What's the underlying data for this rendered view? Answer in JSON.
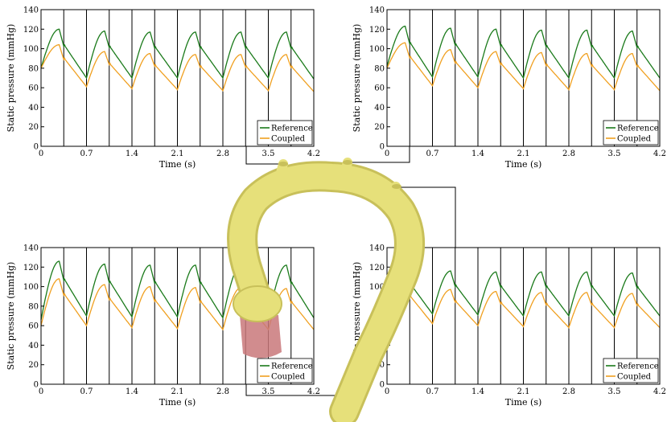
{
  "figure": {
    "colors": {
      "reference": "#1a7a1a",
      "coupled": "#f0a020",
      "aorta": "#e6e07a",
      "aorta_shade": "#c8c05a",
      "ventricle": "#c9787a",
      "frame": "#000000"
    }
  },
  "chart_data": [
    {
      "type": "line",
      "panel": "top-left",
      "xlabel": "Time (s)",
      "ylabel": "Static pressure (mmHg)",
      "xlim": [
        0,
        4.2
      ],
      "ylim": [
        0,
        140
      ],
      "xticks": [
        "0",
        "0.7",
        "1.4",
        "2.1",
        "2.8",
        "3.5",
        "4.2"
      ],
      "yticks": [
        "0",
        "20",
        "40",
        "60",
        "80",
        "100",
        "120",
        "140"
      ],
      "vlines": [
        0.35,
        0.7,
        1.05,
        1.4,
        1.75,
        2.1,
        2.45,
        2.8,
        3.15,
        3.5,
        3.85
      ],
      "legend": {
        "position": "bottom-right",
        "entries": [
          "Reference",
          "Coupled"
        ]
      },
      "series": [
        {
          "name": "Reference",
          "color": "reference",
          "start": 80,
          "peaks": [
            120,
            118,
            117,
            117,
            117,
            117
          ],
          "troughs": [
            70,
            70,
            70,
            70,
            70,
            69
          ]
        },
        {
          "name": "Coupled",
          "color": "coupled",
          "start": 80,
          "peaks": [
            104,
            97,
            95,
            94,
            94,
            94
          ],
          "troughs": [
            61,
            59,
            58,
            57,
            57,
            56
          ]
        }
      ]
    },
    {
      "type": "line",
      "panel": "top-right",
      "xlabel": "Time (s)",
      "ylabel": "Static pressure (mmHg)",
      "xlim": [
        0,
        4.2
      ],
      "ylim": [
        0,
        140
      ],
      "xticks": [
        "0",
        "0.7",
        "1.4",
        "2.1",
        "2.8",
        "3.5",
        "4.2"
      ],
      "yticks": [
        "0",
        "20",
        "40",
        "60",
        "80",
        "100",
        "120",
        "140"
      ],
      "vlines": [
        0.35,
        0.7,
        1.05,
        1.4,
        1.75,
        2.1,
        2.45,
        2.8,
        3.15,
        3.5,
        3.85
      ],
      "legend": {
        "position": "bottom-right",
        "entries": [
          "Reference",
          "Coupled"
        ]
      },
      "series": [
        {
          "name": "Reference",
          "color": "reference",
          "start": 82,
          "peaks": [
            123,
            121,
            120,
            119,
            119,
            118
          ],
          "troughs": [
            71,
            71,
            70,
            70,
            70,
            70
          ]
        },
        {
          "name": "Coupled",
          "color": "coupled",
          "start": 80,
          "peaks": [
            106,
            99,
            97,
            96,
            95,
            95
          ],
          "troughs": [
            62,
            60,
            59,
            58,
            58,
            57
          ]
        }
      ]
    },
    {
      "type": "line",
      "panel": "bottom-left",
      "xlabel": "Time (s)",
      "ylabel": "Static pressure (mmHg)",
      "xlim": [
        0,
        4.2
      ],
      "ylim": [
        0,
        140
      ],
      "xticks": [
        "0",
        "0.7",
        "1.4",
        "2.1",
        "2.8",
        "3.5",
        "4.2"
      ],
      "yticks": [
        "0",
        "20",
        "40",
        "60",
        "80",
        "100",
        "120",
        "140"
      ],
      "vlines": [
        0.35,
        0.7,
        1.05,
        1.4,
        1.75,
        2.1,
        2.45,
        2.8,
        3.15,
        3.5,
        3.85
      ],
      "legend": {
        "position": "bottom-right",
        "entries": [
          "Reference",
          "Coupled"
        ]
      },
      "series": [
        {
          "name": "Reference",
          "color": "reference",
          "start": 66,
          "peaks": [
            126,
            123,
            122,
            122,
            122,
            122
          ],
          "troughs": [
            70,
            69,
            69,
            68,
            68,
            68
          ]
        },
        {
          "name": "Coupled",
          "color": "coupled",
          "start": 60,
          "peaks": [
            108,
            102,
            100,
            99,
            99,
            98
          ],
          "troughs": [
            60,
            58,
            57,
            56,
            56,
            56
          ]
        }
      ]
    },
    {
      "type": "line",
      "panel": "bottom-right",
      "xlabel": "Time (s)",
      "ylabel": "Static pressure (mmHg)",
      "xlim": [
        0,
        4.2
      ],
      "ylim": [
        0,
        140
      ],
      "xticks": [
        "0",
        "0.7",
        "1.4",
        "2.1",
        "2.8",
        "3.5",
        "4.2"
      ],
      "yticks": [
        "0",
        "20",
        "40",
        "60",
        "80",
        "100",
        "120",
        "140"
      ],
      "vlines": [
        0.35,
        0.7,
        1.05,
        1.4,
        1.75,
        2.1,
        2.45,
        2.8,
        3.15,
        3.5,
        3.85
      ],
      "legend": {
        "position": "bottom-right",
        "entries": [
          "Reference",
          "Coupled"
        ]
      },
      "series": [
        {
          "name": "Reference",
          "color": "reference",
          "start": 68,
          "peaks": [
            118,
            116,
            115,
            115,
            115,
            114
          ],
          "troughs": [
            72,
            71,
            70,
            70,
            70,
            70
          ]
        },
        {
          "name": "Coupled",
          "color": "coupled",
          "start": 60,
          "peaks": [
            104,
            97,
            95,
            94,
            94,
            93
          ],
          "troughs": [
            62,
            60,
            59,
            58,
            58,
            58
          ]
        }
      ]
    }
  ]
}
